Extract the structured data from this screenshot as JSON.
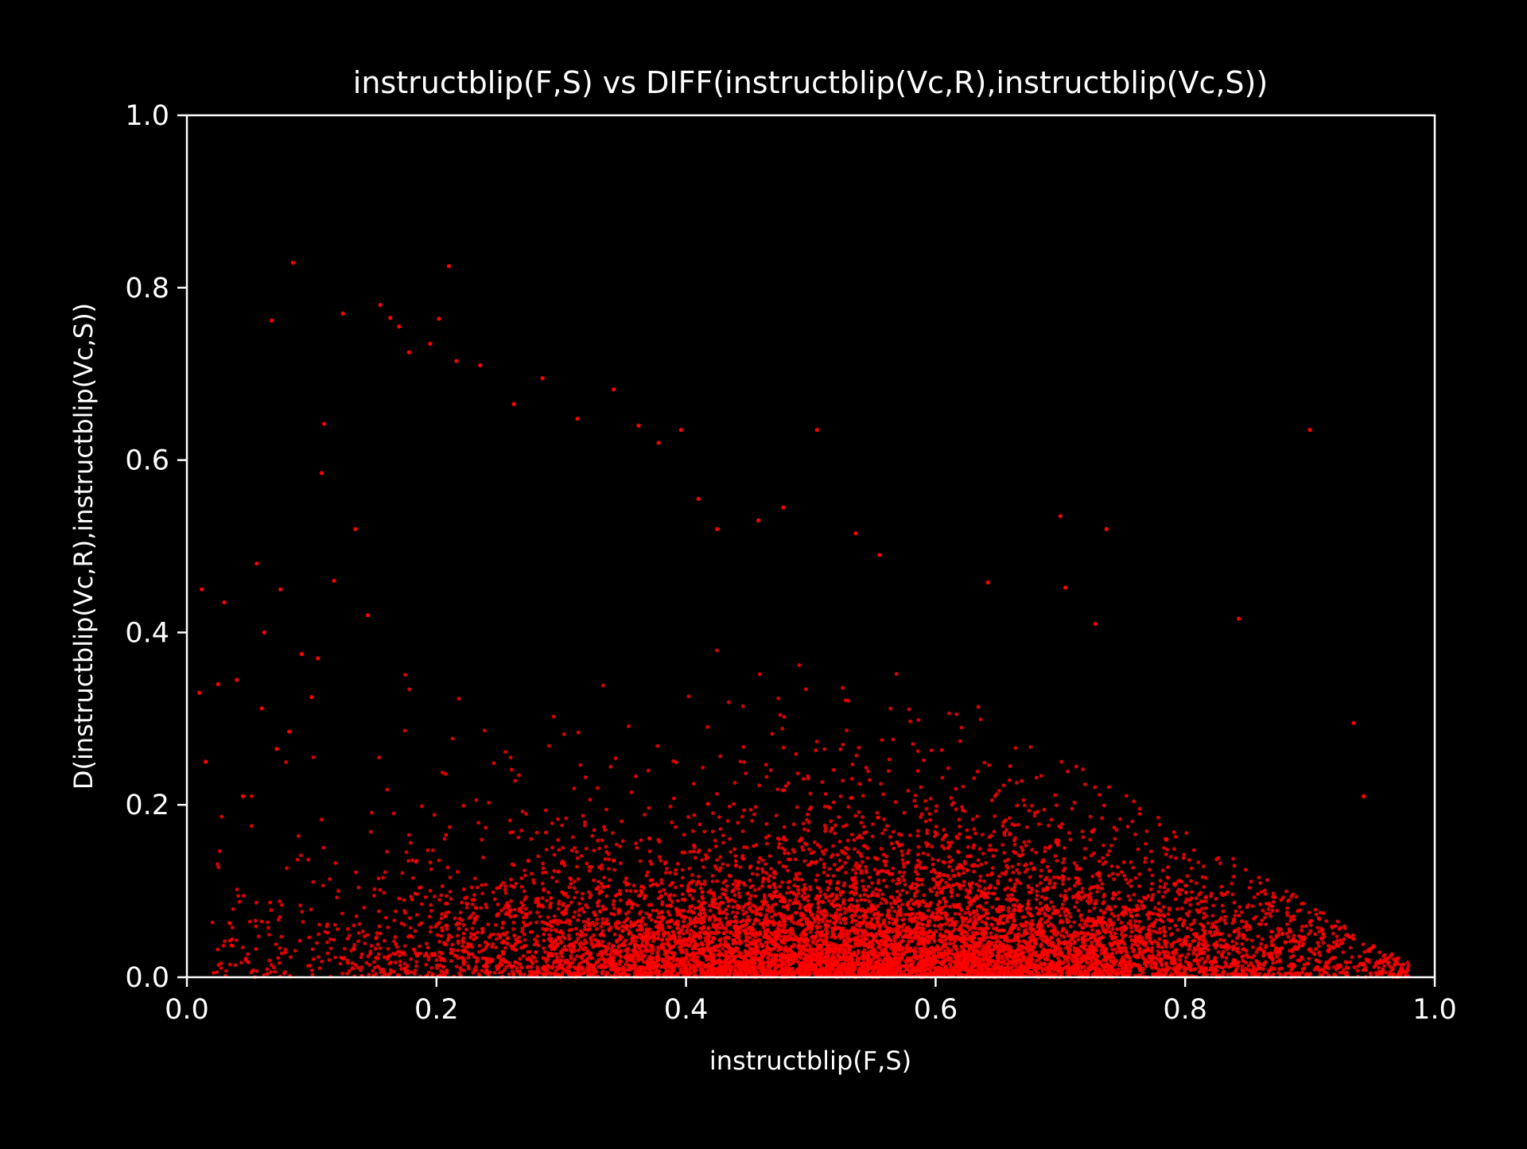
{
  "chart_data": {
    "type": "scatter",
    "title": "instructblip(F,S) vs DIFF(instructblip(Vc,R),instructblip(Vc,S))",
    "xlabel": "instructblip(F,S)",
    "ylabel": "D(instructblip(Vc,R),instructblip(Vc,S))",
    "xlim": [
      0.0,
      1.0
    ],
    "ylim": [
      0.0,
      1.0
    ],
    "xticks": [
      "0.0",
      "0.2",
      "0.4",
      "0.6",
      "0.8",
      "1.0"
    ],
    "yticks": [
      "0.0",
      "0.2",
      "0.4",
      "0.6",
      "0.8",
      "1.0"
    ],
    "grid": false,
    "legend": null,
    "colors": {
      "background": "#000000",
      "axes": "#ffffff",
      "points": "#ff0000"
    },
    "series": [
      {
        "color": "#ff0000",
        "x": [
          0.085,
          0.21,
          0.155,
          0.125,
          0.163,
          0.068,
          0.202,
          0.17,
          0.178,
          0.195,
          0.216,
          0.235,
          0.262,
          0.285,
          0.342,
          0.505,
          0.9,
          0.11,
          0.313,
          0.362,
          0.378,
          0.396,
          0.41,
          0.425,
          0.458,
          0.478,
          0.536,
          0.555,
          0.7,
          0.737,
          0.642,
          0.704,
          0.843,
          0.935,
          0.943,
          0.728,
          0.012,
          0.03,
          0.056,
          0.075,
          0.092,
          0.108,
          0.04,
          0.025,
          0.06,
          0.1,
          0.01,
          0.072,
          0.062,
          0.082,
          0.118,
          0.135,
          0.145,
          0.105,
          0.015,
          0.045
        ],
        "y": [
          0.829,
          0.825,
          0.78,
          0.77,
          0.765,
          0.762,
          0.764,
          0.755,
          0.725,
          0.735,
          0.715,
          0.71,
          0.665,
          0.695,
          0.682,
          0.635,
          0.635,
          0.642,
          0.648,
          0.64,
          0.62,
          0.635,
          0.555,
          0.52,
          0.53,
          0.545,
          0.515,
          0.49,
          0.535,
          0.52,
          0.458,
          0.452,
          0.416,
          0.295,
          0.21,
          0.41,
          0.45,
          0.435,
          0.48,
          0.45,
          0.375,
          0.585,
          0.345,
          0.34,
          0.312,
          0.325,
          0.33,
          0.265,
          0.4,
          0.285,
          0.46,
          0.52,
          0.42,
          0.37,
          0.25,
          0.21
        ]
      }
    ]
  }
}
